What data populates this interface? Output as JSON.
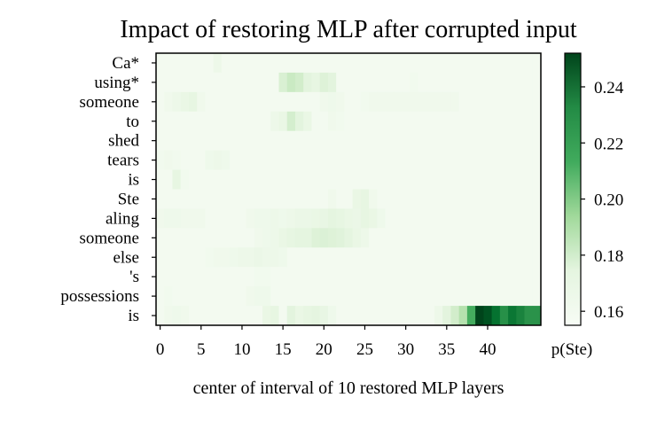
{
  "chart_data": {
    "type": "heatmap",
    "title": "Impact of restoring MLP after corrupted input",
    "xlabel": "center of interval of 10 restored MLP layers",
    "ylabel": "",
    "x_ticks": [
      0,
      5,
      10,
      15,
      20,
      25,
      30,
      35,
      40
    ],
    "x_range": [
      0,
      47
    ],
    "rows": [
      "Ca*",
      "using*",
      "someone",
      "to",
      "shed",
      "tears",
      "is",
      "Ste",
      "aling",
      "someone",
      "else",
      "'s",
      "possessions",
      "is"
    ],
    "colorbar": {
      "label": "p(Ste)",
      "ticks": [
        0.16,
        0.18,
        0.2,
        0.22,
        0.24
      ],
      "vmin": 0.155,
      "vmax": 0.252,
      "colormap": "Greens"
    },
    "hot_cells": [
      {
        "row": 0,
        "cells": [
          [
            7,
            0.162
          ]
        ]
      },
      {
        "row": 1,
        "cells": [
          [
            15,
            0.172
          ],
          [
            16,
            0.178
          ],
          [
            17,
            0.175
          ],
          [
            18,
            0.168
          ],
          [
            19,
            0.166
          ],
          [
            20,
            0.17
          ],
          [
            21,
            0.168
          ],
          [
            29,
            0.158
          ],
          [
            31,
            0.159
          ]
        ]
      },
      {
        "row": 2,
        "cells": [
          [
            1,
            0.16
          ],
          [
            2,
            0.162
          ],
          [
            3,
            0.164
          ],
          [
            4,
            0.166
          ],
          [
            5,
            0.16
          ],
          [
            20,
            0.16
          ],
          [
            21,
            0.161
          ],
          [
            22,
            0.16
          ],
          [
            25,
            0.159
          ],
          [
            26,
            0.16
          ],
          [
            27,
            0.16
          ],
          [
            28,
            0.16
          ],
          [
            29,
            0.16
          ],
          [
            30,
            0.16
          ],
          [
            31,
            0.16
          ],
          [
            32,
            0.16
          ],
          [
            33,
            0.16
          ],
          [
            34,
            0.16
          ],
          [
            35,
            0.16
          ],
          [
            36,
            0.16
          ]
        ]
      },
      {
        "row": 3,
        "cells": [
          [
            14,
            0.162
          ],
          [
            15,
            0.164
          ],
          [
            16,
            0.174
          ],
          [
            17,
            0.168
          ],
          [
            18,
            0.164
          ],
          [
            21,
            0.16
          ],
          [
            22,
            0.159
          ]
        ]
      },
      {
        "row": 4,
        "cells": [
          [
            40,
            0.158
          ]
        ]
      },
      {
        "row": 5,
        "cells": [
          [
            0,
            0.159
          ],
          [
            1,
            0.16
          ],
          [
            2,
            0.159
          ],
          [
            6,
            0.161
          ],
          [
            7,
            0.162
          ],
          [
            8,
            0.161
          ]
        ]
      },
      {
        "row": 6,
        "cells": [
          [
            2,
            0.166
          ],
          [
            3,
            0.159
          ]
        ]
      },
      {
        "row": 7,
        "cells": [
          [
            21,
            0.16
          ],
          [
            24,
            0.164
          ],
          [
            25,
            0.166
          ],
          [
            26,
            0.16
          ]
        ]
      },
      {
        "row": 8,
        "cells": [
          [
            0,
            0.16
          ],
          [
            1,
            0.161
          ],
          [
            2,
            0.161
          ],
          [
            3,
            0.16
          ],
          [
            4,
            0.16
          ],
          [
            5,
            0.16
          ],
          [
            11,
            0.16
          ],
          [
            12,
            0.161
          ],
          [
            13,
            0.161
          ],
          [
            14,
            0.162
          ],
          [
            15,
            0.161
          ],
          [
            16,
            0.162
          ],
          [
            17,
            0.163
          ],
          [
            18,
            0.163
          ],
          [
            19,
            0.164
          ],
          [
            20,
            0.165
          ],
          [
            21,
            0.167
          ],
          [
            22,
            0.166
          ],
          [
            23,
            0.164
          ],
          [
            24,
            0.163
          ],
          [
            25,
            0.166
          ],
          [
            26,
            0.164
          ],
          [
            27,
            0.161
          ]
        ]
      },
      {
        "row": 9,
        "cells": [
          [
            12,
            0.16
          ],
          [
            13,
            0.161
          ],
          [
            14,
            0.162
          ],
          [
            15,
            0.164
          ],
          [
            16,
            0.166
          ],
          [
            17,
            0.167
          ],
          [
            18,
            0.167
          ],
          [
            19,
            0.17
          ],
          [
            20,
            0.171
          ],
          [
            21,
            0.17
          ],
          [
            22,
            0.169
          ],
          [
            23,
            0.167
          ],
          [
            24,
            0.164
          ],
          [
            25,
            0.162
          ]
        ]
      },
      {
        "row": 10,
        "cells": [
          [
            6,
            0.159
          ],
          [
            7,
            0.16
          ],
          [
            8,
            0.16
          ],
          [
            9,
            0.161
          ],
          [
            10,
            0.162
          ],
          [
            11,
            0.162
          ],
          [
            12,
            0.163
          ],
          [
            13,
            0.162
          ],
          [
            14,
            0.162
          ],
          [
            15,
            0.161
          ]
        ]
      },
      {
        "row": 11,
        "cells": [
          [
            12,
            0.159
          ],
          [
            13,
            0.159
          ]
        ]
      },
      {
        "row": 12,
        "cells": [
          [
            1,
            0.159
          ],
          [
            11,
            0.16
          ],
          [
            12,
            0.161
          ],
          [
            13,
            0.161
          ]
        ]
      },
      {
        "row": 13,
        "cells": [
          [
            1,
            0.16
          ],
          [
            2,
            0.161
          ],
          [
            3,
            0.16
          ],
          [
            13,
            0.164
          ],
          [
            14,
            0.166
          ],
          [
            16,
            0.168
          ],
          [
            17,
            0.164
          ],
          [
            18,
            0.166
          ],
          [
            19,
            0.167
          ],
          [
            20,
            0.165
          ],
          [
            21,
            0.161
          ],
          [
            34,
            0.162
          ],
          [
            35,
            0.168
          ],
          [
            36,
            0.175
          ],
          [
            37,
            0.185
          ],
          [
            38,
            0.215
          ],
          [
            39,
            0.252
          ],
          [
            40,
            0.248
          ],
          [
            41,
            0.238
          ],
          [
            42,
            0.226
          ],
          [
            43,
            0.236
          ],
          [
            44,
            0.231
          ],
          [
            45,
            0.225
          ],
          [
            46,
            0.225
          ]
        ]
      }
    ]
  }
}
